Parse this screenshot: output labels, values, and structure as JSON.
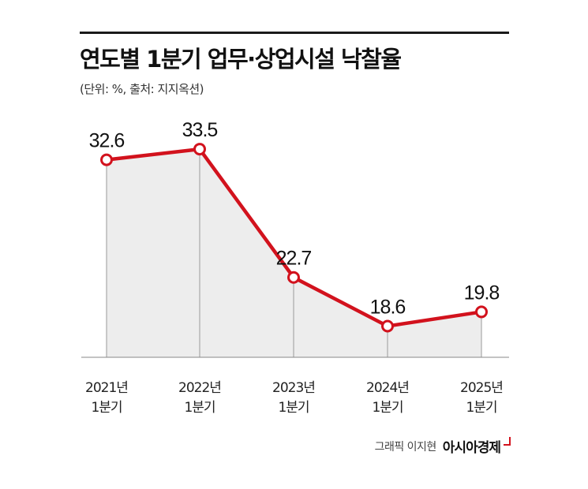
{
  "header": {
    "title": "연도별 1분기 업무·상업시설 낙찰율",
    "subtitle": "(단위: %, 출처: 지지옥션)"
  },
  "footer": {
    "credit": "그래픽 이지현",
    "brand": "아시아경제"
  },
  "colors": {
    "line": "#d2121d",
    "area": "#ededed",
    "marker_fill": "#ffffff"
  },
  "chart_data": {
    "type": "line",
    "categories": [
      "2021년 1분기",
      "2022년 1분기",
      "2023년 1분기",
      "2024년 1분기",
      "2025년 1분기"
    ],
    "category_lines": [
      [
        "2021년",
        "1분기"
      ],
      [
        "2022년",
        "1분기"
      ],
      [
        "2023년",
        "1분기"
      ],
      [
        "2024년",
        "1분기"
      ],
      [
        "2025년",
        "1분기"
      ]
    ],
    "values": [
      32.6,
      33.5,
      22.7,
      18.6,
      19.8
    ],
    "value_labels": [
      "32.6",
      "33.5",
      "22.7",
      "18.6",
      "19.8"
    ],
    "title": "연도별 1분기 업무·상업시설 낙찰율",
    "xlabel": "",
    "ylabel": "",
    "grid": false,
    "area_fill": true,
    "markers": "hollow-circle"
  }
}
